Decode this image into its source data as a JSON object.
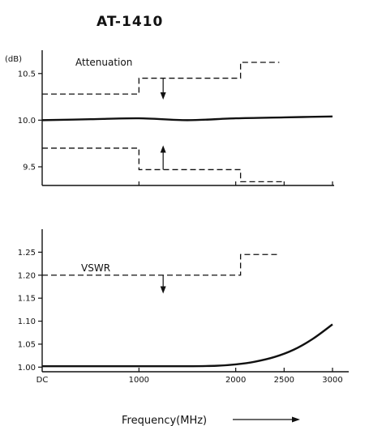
{
  "title": "AT-1410",
  "chart_data": [
    {
      "type": "line",
      "panel": "attenuation",
      "series_label": "Attenuation",
      "y_unit": "(dB)",
      "ylim": [
        9.3,
        10.75
      ],
      "yticks": [
        10.5,
        10.0,
        9.5
      ],
      "ytick_labels": [
        "10.5",
        "10.0",
        "9.5"
      ],
      "series": [
        {
          "style": "solid",
          "x": [
            0,
            500,
            1000,
            1500,
            2000,
            2500,
            3000
          ],
          "y": [
            10.0,
            10.01,
            10.02,
            10.0,
            10.02,
            10.03,
            10.04
          ]
        },
        {
          "style": "dashed",
          "x": [
            0,
            1000,
            1000,
            2050,
            2050,
            2450
          ],
          "y": [
            10.28,
            10.28,
            10.45,
            10.45,
            10.62,
            10.62
          ]
        },
        {
          "style": "dashed",
          "x": [
            0,
            1000,
            1000,
            2050,
            2050,
            2500
          ],
          "y": [
            9.7,
            9.7,
            9.47,
            9.47,
            9.34,
            9.34
          ]
        }
      ],
      "arrows": [
        {
          "x": 1250,
          "from": 10.45,
          "to": 10.22
        },
        {
          "x": 1250,
          "from": 9.47,
          "to": 9.73
        }
      ]
    },
    {
      "type": "line",
      "panel": "vswr",
      "series_label": "VSWR",
      "ylim": [
        0.99,
        1.3
      ],
      "yticks": [
        1.25,
        1.2,
        1.15,
        1.1,
        1.05,
        1.0
      ],
      "ytick_labels": [
        "1.25",
        "1.20",
        "1.15",
        "1.10",
        "1.05",
        "1.00"
      ],
      "xlabel": "Frequency(MHz)",
      "xticks": [
        0,
        1000,
        2000,
        2500,
        3000
      ],
      "xtick_labels": [
        "DC",
        "1000",
        "2000",
        "2500",
        "3000"
      ],
      "series": [
        {
          "style": "solid",
          "x": [
            0,
            500,
            1000,
            1500,
            1800,
            2000,
            2200,
            2400,
            2600,
            2800,
            3000
          ],
          "y": [
            1.002,
            1.002,
            1.002,
            1.002,
            1.003,
            1.006,
            1.012,
            1.022,
            1.038,
            1.062,
            1.093
          ]
        },
        {
          "style": "dashed",
          "x": [
            0,
            2050,
            2050,
            2450
          ],
          "y": [
            1.2,
            1.2,
            1.245,
            1.245
          ]
        }
      ],
      "arrows": [
        {
          "x": 1250,
          "from": 1.2,
          "to": 1.16
        }
      ]
    }
  ]
}
